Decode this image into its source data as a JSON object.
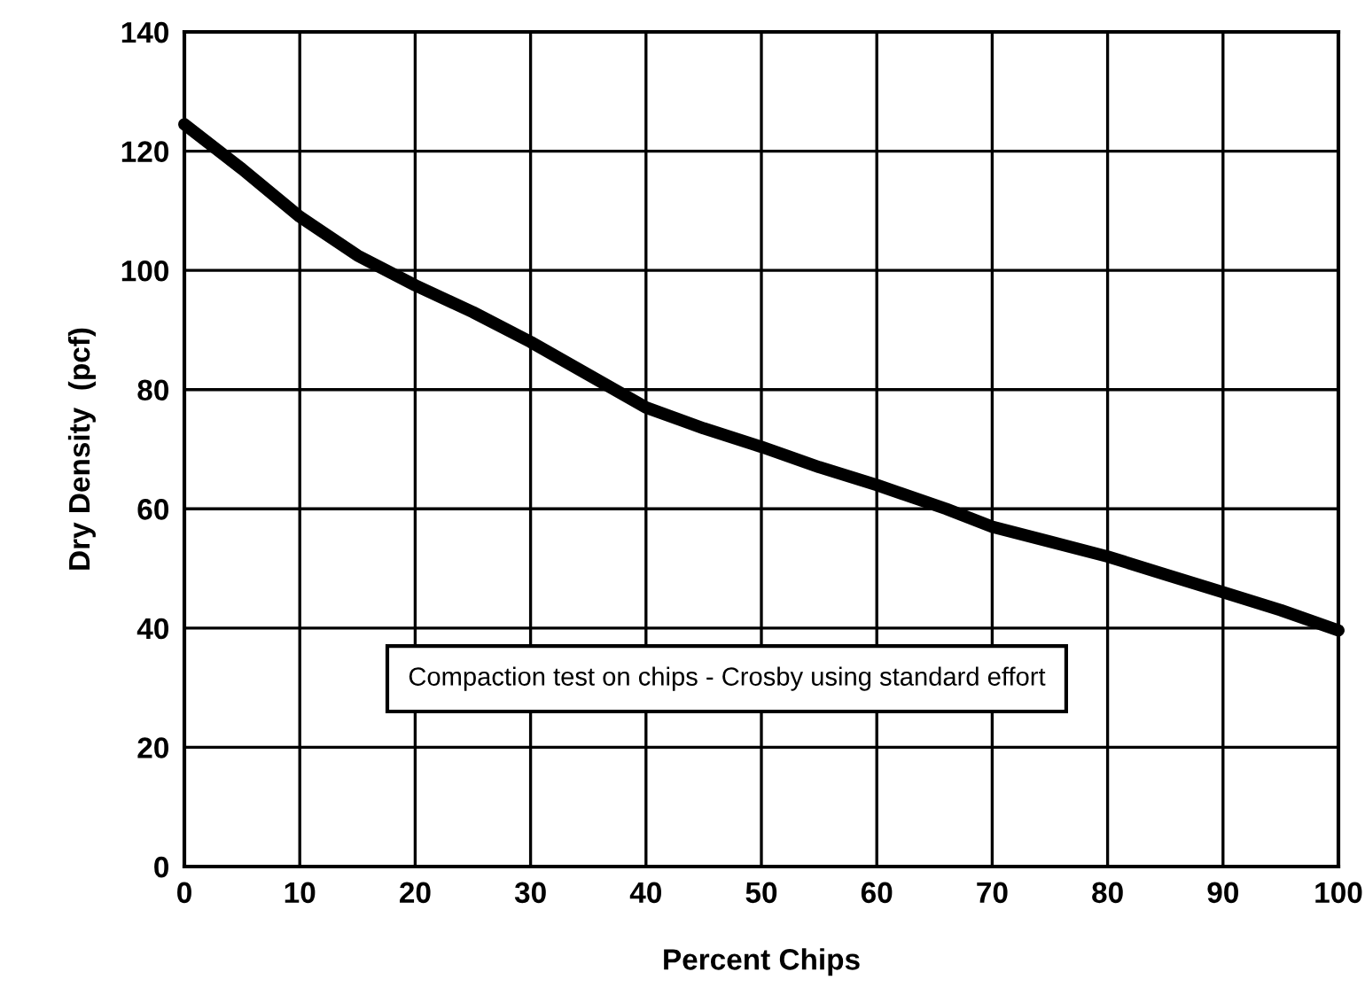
{
  "chart_data": {
    "type": "line",
    "xlabel": "Percent Chips",
    "ylabel": "Dry Density  (pcf)",
    "x": [
      0,
      5,
      10,
      15,
      20,
      25,
      30,
      35,
      40,
      45,
      50,
      55,
      60,
      66,
      70,
      75,
      80,
      85,
      90,
      95,
      100
    ],
    "series": [
      {
        "color": "#000000",
        "values": [
          124.5,
          117,
          109,
          102.5,
          97.5,
          93,
          88,
          82.5,
          77,
          73.5,
          70.4,
          67,
          64,
          60,
          57,
          54.5,
          52,
          49,
          46,
          43,
          39.6
        ]
      }
    ],
    "xlim": [
      0,
      100
    ],
    "xticks": [
      0,
      10,
      20,
      30,
      40,
      50,
      60,
      70,
      80,
      90,
      100
    ],
    "ylim": [
      0,
      140
    ],
    "yticks": [
      0,
      20,
      40,
      60,
      80,
      100,
      120,
      140
    ],
    "grid": true,
    "marker": "none",
    "line_style": "solid",
    "annotations": [
      "Compaction test on chips - Crosby using standard effort"
    ]
  }
}
